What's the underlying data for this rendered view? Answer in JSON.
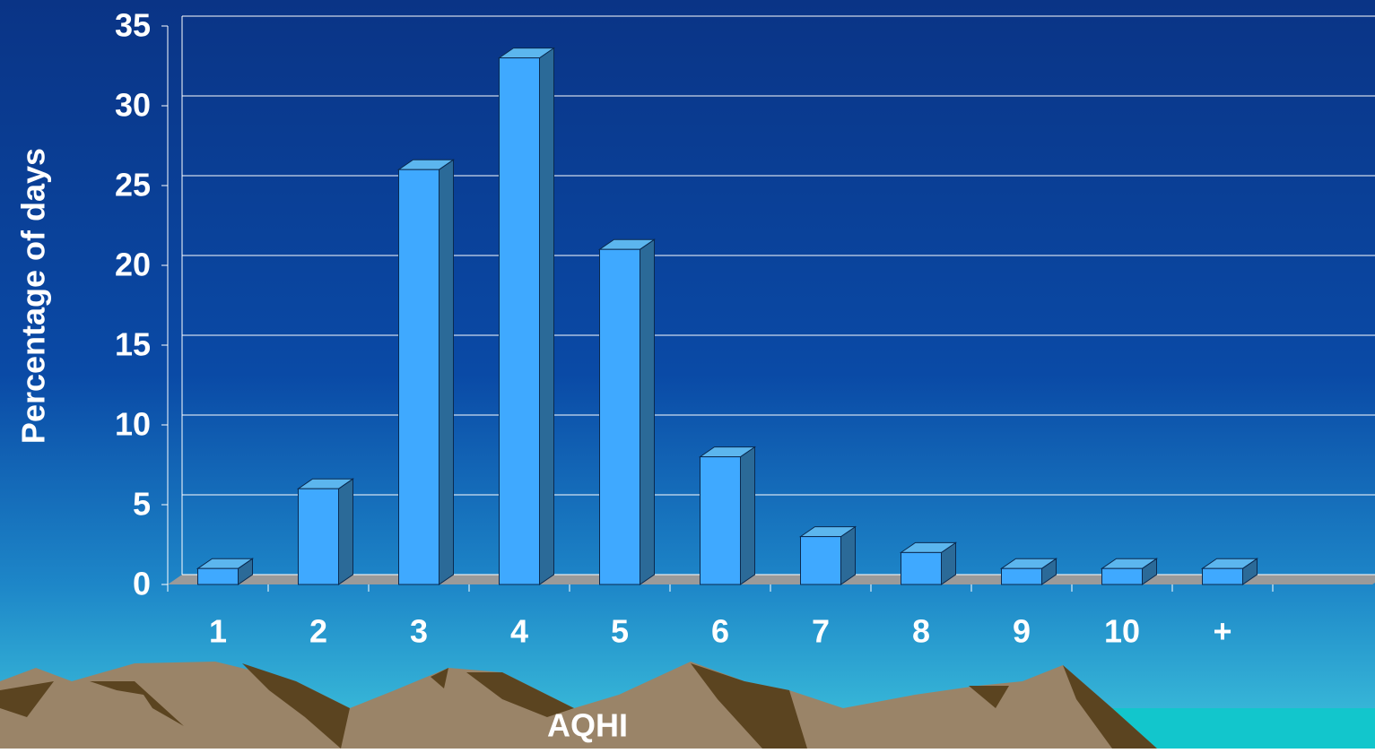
{
  "chart_data": {
    "type": "bar3d",
    "xlabel": "AQHI",
    "ylabel": "Percentage of days",
    "categories": [
      "1",
      "2",
      "3",
      "4",
      "5",
      "6",
      "7",
      "8",
      "9",
      "10",
      "+",
      null
    ],
    "values": [
      1,
      6,
      26,
      33,
      21,
      8,
      3,
      2,
      1,
      1,
      1,
      null
    ],
    "color": "#3fa9ff",
    "ylim": [
      0,
      35
    ],
    "yticks": [
      0,
      5,
      10,
      15,
      20,
      25,
      30,
      35
    ],
    "grid": true
  }
}
